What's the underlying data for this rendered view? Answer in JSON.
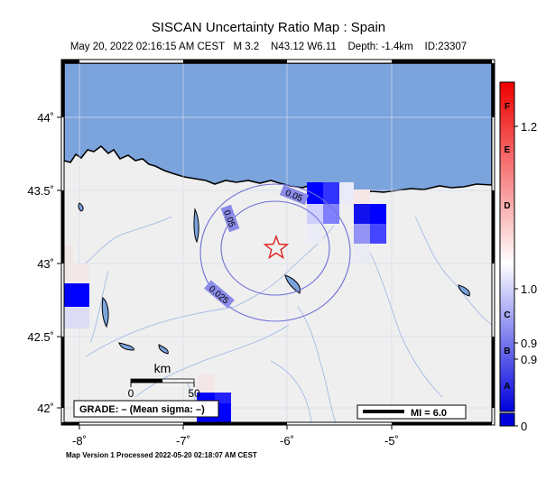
{
  "header": {
    "title": "SISCAN Uncertainty Ratio Map : Spain",
    "subtitle": "May 20, 2022 02:16:15 AM CEST   M 3.2    N43.12 W6.11    Depth: -1.4km    ID:23307"
  },
  "map": {
    "lat_labels": [
      "44˚",
      "43.5˚",
      "43˚",
      "42.5˚",
      "42˚"
    ],
    "lon_labels": [
      "-8˚",
      "-7˚",
      "-6˚",
      "-5˚"
    ],
    "contour_labels": [
      "0.05",
      "0.05",
      "0.025"
    ],
    "scale_bar": {
      "unit": "km",
      "ticks": [
        "0",
        "50"
      ]
    },
    "grade_box": "GRADE: – (Mean sigma: –)",
    "mi_legend": "MI = 6.0",
    "epicenter": {
      "lat": 43.12,
      "lon": -6.11
    },
    "colors": {
      "sea": "#7ba3dc",
      "land": "#efefef",
      "epicenter": "#e02020",
      "contour": "#6f6fd8"
    }
  },
  "colorbar": {
    "letters": [
      "F",
      "E",
      "D",
      "C",
      "B",
      "A"
    ],
    "values": [
      "1.2",
      "1.0",
      "0.9",
      "0.9",
      "0"
    ]
  },
  "footer": "Map Version 1 Processed 2022-05-20 02:18:07 AM CEST"
}
